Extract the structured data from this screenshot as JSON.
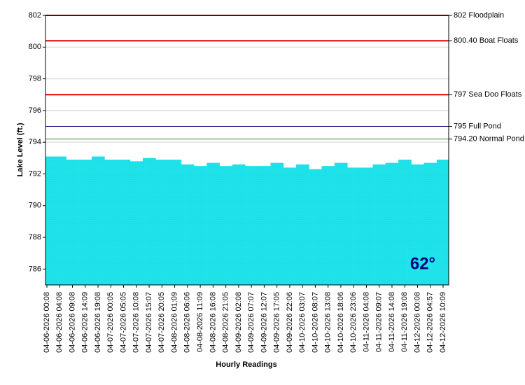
{
  "chart_data": {
    "type": "area",
    "y_label": "Lake Level (ft.)",
    "x_label": "Hourly Readings",
    "badge": "62°",
    "categories": [
      "04-06-2026 00:08",
      "04-06-2026 04:08",
      "04-06-2026 09:08",
      "04-06-2026 14:09",
      "04-06-2026 19:08",
      "04-07-2026 00:05",
      "04-07-2026 05:05",
      "04-07-2026 10:08",
      "04-07-2026 15:07",
      "04-07-2026 20:05",
      "04-08-2026 01:09",
      "04-08-2026 06:06",
      "04-08-2026 11:09",
      "04-08-2026 16:08",
      "04-08-2026 21:05",
      "04-09-2026 02:08",
      "04-09-2026 07:07",
      "04-09-2026 12:07",
      "04-09-2026 17:05",
      "04-09-2026 22:06",
      "04-10-2026 03:07",
      "04-10-2026 08:07",
      "04-10-2026 13:08",
      "04-10-2026 18:06",
      "04-10-2026 23:06",
      "04-11-2026 04:08",
      "04-11-2026 09:07",
      "04-11-2026 14:08",
      "04-11-2026 19:08",
      "04-12-2026 00:08",
      "04-12-2026 04:57",
      "04-12-2026 10:09"
    ],
    "values": [
      793.1,
      793.1,
      792.9,
      792.9,
      793.1,
      792.9,
      792.9,
      792.8,
      793.0,
      792.9,
      792.9,
      792.6,
      792.5,
      792.7,
      792.5,
      792.6,
      792.5,
      792.5,
      792.7,
      792.4,
      792.6,
      792.3,
      792.5,
      792.7,
      792.4,
      792.4,
      792.6,
      792.7,
      792.9,
      792.6,
      792.7,
      792.9
    ],
    "color": "#1fe3ea",
    "ylim": [
      785,
      802
    ],
    "yticks": [
      786,
      788,
      790,
      792,
      794,
      796,
      798,
      800,
      802
    ],
    "grid": true,
    "reference_lines": [
      {
        "value": 802,
        "label": "802 Floodplain",
        "color": "#e00000"
      },
      {
        "value": 800.4,
        "label": "800.40 Boat Floats",
        "color": "#e00000"
      },
      {
        "value": 797,
        "label": "797 Sea Doo Floats",
        "color": "#e00000"
      },
      {
        "value": 795,
        "label": "795 Full Pond",
        "color": "#000080"
      },
      {
        "value": 794.2,
        "label": "794.20 Normal Pond",
        "color": "#2e8b2e"
      }
    ]
  }
}
